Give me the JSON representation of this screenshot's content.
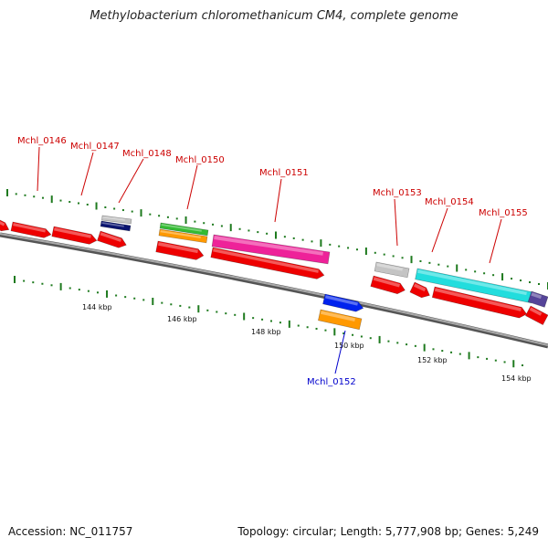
{
  "title": "Methylobacterium chloromethanicum CM4, complete genome",
  "footer": {
    "accession": "Accession: NC_011757",
    "summary": "Topology: circular; Length: 5,777,908 bp; Genes: 5,249"
  },
  "colors": {
    "backbone": "#888888",
    "tick": "#1e7a1e",
    "gene_label": "#cc0000",
    "gene_label_reverse": "#0000cc",
    "cds": "#ee0000",
    "pink": "#ee2299",
    "cyan": "#22dddd",
    "green": "#33bb33",
    "orange": "#ff9900",
    "navy": "#0a1470",
    "grey": "#c4c4c4",
    "blue": "#0022ee",
    "purple": "#554499"
  },
  "tick_labels": [
    "144 kbp",
    "146 kbp",
    "148 kbp",
    "150 kbp",
    "152 kbp",
    "154 kbp"
  ],
  "gene_labels": [
    {
      "text": "Mchl_0146",
      "strand": "forward"
    },
    {
      "text": "Mchl_0147",
      "strand": "forward"
    },
    {
      "text": "Mchl_0148",
      "strand": "forward"
    },
    {
      "text": "Mchl_0150",
      "strand": "forward"
    },
    {
      "text": "Mchl_0151",
      "strand": "forward"
    },
    {
      "text": "Mchl_0153",
      "strand": "forward"
    },
    {
      "text": "Mchl_0154",
      "strand": "forward"
    },
    {
      "text": "Mchl_0155",
      "strand": "forward"
    },
    {
      "text": "Mchl_0152",
      "strand": "reverse"
    }
  ]
}
